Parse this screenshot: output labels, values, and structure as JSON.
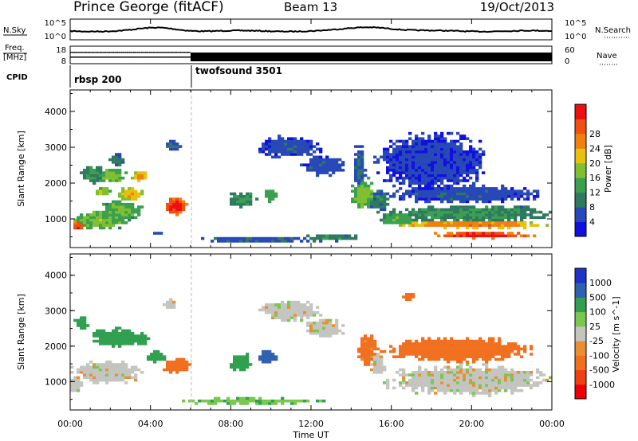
{
  "header": {
    "station": "Prince George (fitACF)",
    "beam": "Beam 13",
    "date": "19/Oct/2013"
  },
  "top_panels": {
    "nsky_label": "N.Sky",
    "nsearch_label": "N.Search",
    "nsky_ticks": [
      "10^5",
      "10^0"
    ],
    "nsearch_ticks": [
      "10^5",
      "10^0"
    ],
    "freq_label_line1": "Freq.",
    "freq_label_line2": "[MHz]",
    "freq_ticks": [
      "18",
      "8"
    ],
    "nave_label": "Nave",
    "nave_ticks": [
      "60",
      "0"
    ],
    "cpid_label": "CPID",
    "cpid_segments": [
      {
        "name": "rbsp 200",
        "start_hour": 0
      },
      {
        "name": "twofsound 3501",
        "start_hour": 6
      }
    ]
  },
  "x_axis": {
    "label": "Time UT",
    "ticks": [
      "00:00",
      "04:00",
      "08:00",
      "12:00",
      "16:00",
      "20:00",
      "00:00"
    ]
  },
  "colors": {
    "power": [
      "#1010e0",
      "#2848b8",
      "#2e7a60",
      "#3aa050",
      "#80c030",
      "#e8c010",
      "#f08010",
      "#f05010",
      "#ee1010"
    ],
    "velocity": [
      "#2033c8",
      "#3060b0",
      "#30a050",
      "#78c850",
      "#c4c4c0",
      "#e89030",
      "#f07020",
      "#f04010",
      "#ee0000"
    ]
  },
  "chart_data": [
    {
      "type": "heatmap",
      "title": "Power",
      "ylabel": "Slant Range [km]",
      "xlabel": "",
      "xlim": [
        0,
        24
      ],
      "ylim": [
        200,
        4600
      ],
      "yticks": [
        "1000",
        "2000",
        "3000",
        "4000"
      ],
      "colorbar_label": "Power [dB]",
      "colorbar_ticks": [
        "4",
        "8",
        "12",
        "16",
        "20",
        "24",
        "28"
      ],
      "blobs": [
        {
          "t": 1.5,
          "r": 950,
          "dt": 1.4,
          "dr": 260,
          "p": 14
        },
        {
          "t": 0.4,
          "r": 820,
          "dt": 0.4,
          "dr": 120,
          "p": 26
        },
        {
          "t": 2.6,
          "r": 1250,
          "dt": 1.0,
          "dr": 300,
          "p": 13
        },
        {
          "t": 3.0,
          "r": 1700,
          "dt": 0.7,
          "dr": 180,
          "p": 18
        },
        {
          "t": 1.6,
          "r": 1750,
          "dt": 0.4,
          "dr": 120,
          "p": 16
        },
        {
          "t": 2.1,
          "r": 2200,
          "dt": 0.7,
          "dr": 220,
          "p": 14
        },
        {
          "t": 3.5,
          "r": 2200,
          "dt": 0.4,
          "dr": 150,
          "p": 20
        },
        {
          "t": 1.1,
          "r": 2250,
          "dt": 0.6,
          "dr": 230,
          "p": 10
        },
        {
          "t": 2.3,
          "r": 2650,
          "dt": 0.4,
          "dr": 200,
          "p": 8
        },
        {
          "t": 5.2,
          "r": 1350,
          "dt": 0.6,
          "dr": 260,
          "p": 27
        },
        {
          "t": 4.3,
          "r": 600,
          "dt": 0.3,
          "dr": 50,
          "p": 6
        },
        {
          "t": 5.1,
          "r": 3050,
          "dt": 0.5,
          "dr": 160,
          "p": 6
        },
        {
          "t": 8.6,
          "r": 1550,
          "dt": 0.7,
          "dr": 220,
          "p": 10
        },
        {
          "t": 10.0,
          "r": 1650,
          "dt": 0.4,
          "dr": 180,
          "p": 12
        },
        {
          "t": 10.9,
          "r": 3000,
          "dt": 1.6,
          "dr": 300,
          "p": 5
        },
        {
          "t": 12.6,
          "r": 2500,
          "dt": 1.1,
          "dr": 280,
          "p": 5
        },
        {
          "t": 9.5,
          "r": 430,
          "dt": 3.0,
          "dr": 90,
          "p": 6
        },
        {
          "t": 13.0,
          "r": 480,
          "dt": 1.4,
          "dr": 100,
          "p": 9
        },
        {
          "t": 14.6,
          "r": 1700,
          "dt": 0.6,
          "dr": 450,
          "p": 14
        },
        {
          "t": 14.4,
          "r": 2400,
          "dt": 0.3,
          "dr": 700,
          "p": 6
        },
        {
          "t": 15.4,
          "r": 1500,
          "dt": 0.5,
          "dr": 300,
          "p": 8
        },
        {
          "t": 20.0,
          "r": 1150,
          "dt": 4.0,
          "dr": 230,
          "p": 10
        },
        {
          "t": 20.0,
          "r": 850,
          "dt": 3.8,
          "dr": 120,
          "p": 21
        },
        {
          "t": 20.6,
          "r": 550,
          "dt": 2.6,
          "dr": 90,
          "p": 27
        },
        {
          "t": 19.6,
          "r": 1700,
          "dt": 4.0,
          "dr": 250,
          "p": 5
        },
        {
          "t": 18.0,
          "r": 2600,
          "dt": 2.8,
          "dr": 800,
          "p": 4
        },
        {
          "t": 16.3,
          "r": 1000,
          "dt": 1.0,
          "dr": 180,
          "p": 12
        }
      ]
    },
    {
      "type": "heatmap",
      "title": "Velocity",
      "ylabel": "Slant Range [km]",
      "xlabel": "Time UT",
      "xlim": [
        0,
        24
      ],
      "ylim": [
        200,
        4600
      ],
      "yticks": [
        "1000",
        "2000",
        "3000",
        "4000"
      ],
      "colorbar_label": "Velocity [m s^-1]",
      "colorbar_ticks": [
        "1000",
        "500",
        "100",
        "25",
        "-25",
        "-100",
        "-500",
        "-1000"
      ],
      "blobs": [
        {
          "t": 1.8,
          "r": 1250,
          "dt": 1.8,
          "dr": 320,
          "v": 0
        },
        {
          "t": 0.3,
          "r": 950,
          "dt": 0.4,
          "dr": 250,
          "v": 0
        },
        {
          "t": 2.3,
          "r": 2250,
          "dt": 1.3,
          "dr": 260,
          "v": 150
        },
        {
          "t": 3.5,
          "r": 2200,
          "dt": 0.5,
          "dr": 180,
          "v": 200
        },
        {
          "t": 0.6,
          "r": 2650,
          "dt": 0.4,
          "dr": 180,
          "v": 300
        },
        {
          "t": 4.3,
          "r": 1700,
          "dt": 0.5,
          "dr": 160,
          "v": 200
        },
        {
          "t": 5.3,
          "r": 1450,
          "dt": 0.7,
          "dr": 220,
          "v": -300
        },
        {
          "t": 5.0,
          "r": 3200,
          "dt": 0.4,
          "dr": 120,
          "v": 0
        },
        {
          "t": 8.5,
          "r": 1550,
          "dt": 0.6,
          "dr": 250,
          "v": 200
        },
        {
          "t": 9.8,
          "r": 1700,
          "dt": 0.5,
          "dr": 200,
          "v": 600
        },
        {
          "t": 10.9,
          "r": 3000,
          "dt": 1.6,
          "dr": 300,
          "v": 0
        },
        {
          "t": 12.7,
          "r": 2500,
          "dt": 1.0,
          "dr": 260,
          "v": 0
        },
        {
          "t": 9.0,
          "r": 450,
          "dt": 3.8,
          "dr": 90,
          "v": 80
        },
        {
          "t": 14.8,
          "r": 1900,
          "dt": 0.5,
          "dr": 500,
          "v": -120
        },
        {
          "t": 15.3,
          "r": 1500,
          "dt": 0.4,
          "dr": 280,
          "v": 0
        },
        {
          "t": 19.8,
          "r": 1050,
          "dt": 4.2,
          "dr": 420,
          "v": 0
        },
        {
          "t": 19.3,
          "r": 1900,
          "dt": 3.8,
          "dr": 350,
          "v": -200
        },
        {
          "t": 16.9,
          "r": 3400,
          "dt": 0.4,
          "dr": 120,
          "v": -300
        }
      ]
    }
  ]
}
